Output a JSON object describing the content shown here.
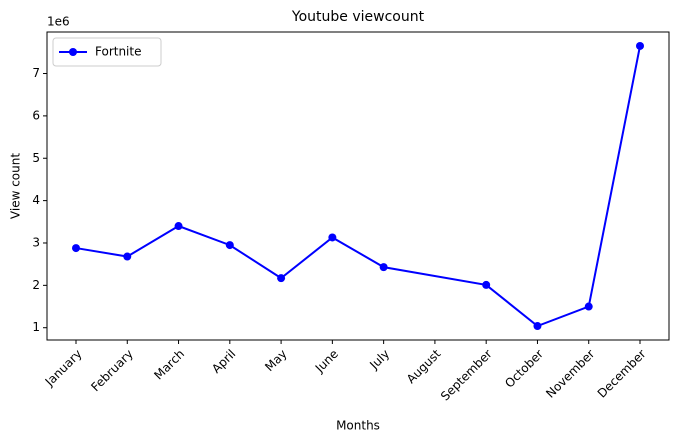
{
  "chart_data": {
    "type": "line",
    "title": "Youtube viewcount",
    "x_label": "Months",
    "y_label": "View count",
    "y_offset_label": "1e6",
    "categories": [
      "January",
      "February",
      "March",
      "April",
      "May",
      "June",
      "July",
      "August",
      "September",
      "October",
      "November",
      "December"
    ],
    "series": [
      {
        "name": "Fortnite",
        "color": "#0000ff",
        "x": [
          "January",
          "February",
          "March",
          "April",
          "May",
          "June",
          "July",
          "September",
          "October",
          "November",
          "December"
        ],
        "values": [
          2880000,
          2680000,
          3400000,
          2950000,
          2170000,
          3130000,
          2430000,
          2010000,
          1040000,
          1500000,
          7650000
        ]
      }
    ],
    "ylim": [
      710000,
      7980000
    ],
    "yticks": [
      {
        "value": 1000000,
        "label": "1"
      },
      {
        "value": 2000000,
        "label": "2"
      },
      {
        "value": 3000000,
        "label": "3"
      },
      {
        "value": 4000000,
        "label": "4"
      },
      {
        "value": 5000000,
        "label": "5"
      },
      {
        "value": 6000000,
        "label": "6"
      },
      {
        "value": 7000000,
        "label": "7"
      }
    ],
    "legend": "upper left",
    "grid": false
  }
}
